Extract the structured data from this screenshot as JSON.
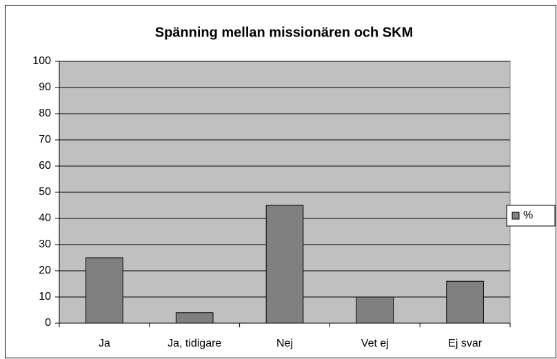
{
  "chart_data": {
    "type": "bar",
    "title": "Spänning mellan missionären och SKM",
    "categories": [
      "Ja",
      "Ja, tidigare",
      "Nej",
      "Vet ej",
      "Ej svar"
    ],
    "series": [
      {
        "name": "%",
        "color": "#808080",
        "values": [
          25,
          4,
          45,
          10,
          16
        ]
      }
    ],
    "ylim": [
      0,
      100
    ],
    "yticks": [
      0,
      10,
      20,
      30,
      40,
      50,
      60,
      70,
      80,
      90,
      100
    ],
    "grid": true,
    "legend": "right"
  }
}
